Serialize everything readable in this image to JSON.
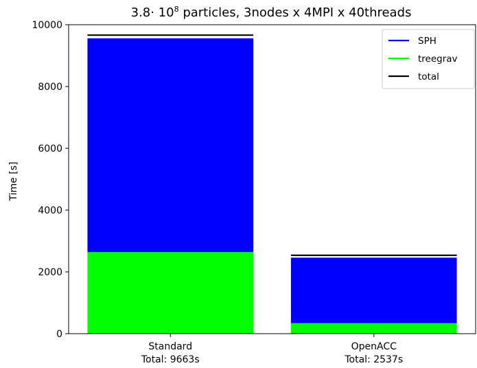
{
  "chart_data": {
    "type": "bar",
    "stacked": true,
    "title": {
      "prefix": "3.8",
      "dot": "·",
      "base": " 10",
      "exponent": "8",
      "rest": " particles, 3nodes x 4MPI x 40threads"
    },
    "ylabel": "Time [s]",
    "xlabel": "",
    "ylim": [
      0,
      10000
    ],
    "yticks": [
      0,
      2000,
      4000,
      6000,
      8000,
      10000
    ],
    "categories": [
      "Standard",
      "OpenACC"
    ],
    "category_sublabels": [
      "Total: 9663s",
      "Total: 2537s"
    ],
    "series": [
      {
        "name": "treegrav",
        "type": "bar",
        "color": "#00ff00",
        "values": [
          2640,
          340
        ]
      },
      {
        "name": "SPH",
        "type": "bar",
        "color": "#0000ff",
        "values": [
          6920,
          2120
        ]
      },
      {
        "name": "total",
        "type": "line-cap",
        "color": "#000000",
        "values": [
          9663,
          2537
        ]
      }
    ],
    "legend": {
      "position": "top-right",
      "entries": [
        {
          "label": "SPH",
          "color": "#0000ff"
        },
        {
          "label": "treegrav",
          "color": "#00ff00"
        },
        {
          "label": "total",
          "color": "#000000"
        }
      ]
    },
    "grid": false
  }
}
